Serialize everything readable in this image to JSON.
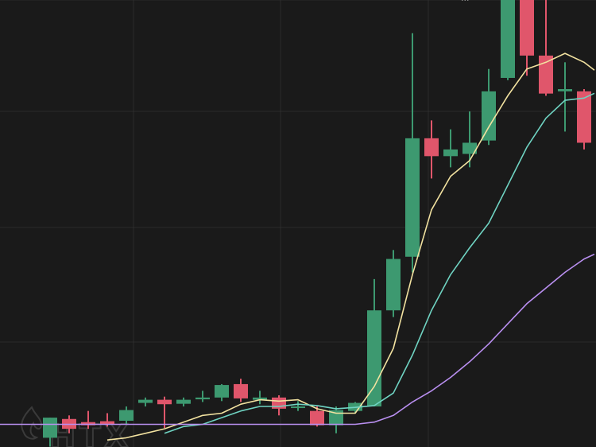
{
  "chart_data": {
    "type": "candlestick",
    "grid": true,
    "background": "#1a1a1a",
    "gridColor": "#2b2b2b",
    "upColor": "#3d9970",
    "downColor": "#e0566b",
    "ylim": [
      0,
      100
    ],
    "candles": [
      {
        "o": 1.0,
        "h": 5.5,
        "l": -1.0,
        "c": 5.5
      },
      {
        "o": 5.2,
        "h": 6.0,
        "l": 2.0,
        "c": 3.0
      },
      {
        "o": 4.5,
        "h": 7.0,
        "l": 3.0,
        "c": 3.8
      },
      {
        "o": 4.7,
        "h": 6.5,
        "l": 3.5,
        "c": 4.0
      },
      {
        "o": 4.8,
        "h": 8.0,
        "l": 4.0,
        "c": 7.2
      },
      {
        "o": 8.8,
        "h": 10.0,
        "l": 8.0,
        "c": 9.5
      },
      {
        "o": 9.5,
        "h": 10.2,
        "l": 3.2,
        "c": 8.5
      },
      {
        "o": 8.6,
        "h": 10.0,
        "l": 8.0,
        "c": 9.5
      },
      {
        "o": 9.6,
        "h": 11.5,
        "l": 9.0,
        "c": 10.0
      },
      {
        "o": 10.0,
        "h": 13.0,
        "l": 9.2,
        "c": 12.8
      },
      {
        "o": 13.0,
        "h": 14.2,
        "l": 9.0,
        "c": 9.8
      },
      {
        "o": 9.5,
        "h": 11.5,
        "l": 8.5,
        "c": 10.0
      },
      {
        "o": 10.0,
        "h": 10.5,
        "l": 6.0,
        "c": 7.5
      },
      {
        "o": 7.8,
        "h": 9.2,
        "l": 7.0,
        "c": 8.0
      },
      {
        "o": 7.0,
        "h": 8.0,
        "l": 3.5,
        "c": 3.8
      },
      {
        "o": 3.8,
        "h": 8.0,
        "l": 2.0,
        "c": 7.2
      },
      {
        "o": 7.0,
        "h": 9.0,
        "l": 6.5,
        "c": 8.8
      },
      {
        "o": 8.0,
        "h": 36.5,
        "l": 8.0,
        "c": 29.5
      },
      {
        "o": 29.5,
        "h": 43.0,
        "l": 28.0,
        "c": 41.0
      },
      {
        "o": 41.5,
        "h": 91.5,
        "l": 38.0,
        "c": 68.0
      },
      {
        "o": 68.0,
        "h": 72.0,
        "l": 59.0,
        "c": 64.0
      },
      {
        "o": 64.0,
        "h": 70.0,
        "l": 61.5,
        "c": 65.5
      },
      {
        "o": 64.5,
        "h": 74.0,
        "l": 61.5,
        "c": 67.0
      },
      {
        "o": 67.5,
        "h": 83.5,
        "l": 66.5,
        "c": 78.5
      },
      {
        "o": 81.5,
        "h": 101.5,
        "l": 81.0,
        "c": 100.0
      },
      {
        "o": 100.0,
        "h": 101.5,
        "l": 82.0,
        "c": 86.5
      },
      {
        "o": 86.5,
        "h": 100.0,
        "l": 77.5,
        "c": 78.0
      },
      {
        "o": 78.5,
        "h": 85.0,
        "l": 69.5,
        "c": 79.0
      },
      {
        "o": 78.5,
        "h": 79.0,
        "l": 65.5,
        "c": 67.0
      }
    ],
    "series": [
      {
        "color": "#f2e2a0",
        "values": [
          null,
          null,
          null,
          0.5,
          1.0,
          2.0,
          3.0,
          4.5,
          6.0,
          6.5,
          8.5,
          9.5,
          9.2,
          9.5,
          7.5,
          6.5,
          6.5,
          12.5,
          21.0,
          37.5,
          52.0,
          59.5,
          63.0,
          70.5,
          77.5,
          83.5,
          85.0,
          87.0,
          85.0
        ]
      },
      {
        "color": "#6fd3c2",
        "values": [
          null,
          null,
          null,
          null,
          null,
          null,
          2.0,
          3.5,
          4.0,
          5.5,
          7.0,
          8.0,
          8.0,
          8.5,
          8.2,
          7.5,
          7.8,
          8.2,
          11.0,
          19.5,
          29.5,
          37.5,
          43.5,
          49.0,
          57.5,
          66.0,
          72.5,
          76.5,
          77.0
        ]
      },
      {
        "color": "#b98ff0",
        "values": [
          4.0,
          4.0,
          4.0,
          4.0,
          4.0,
          4.0,
          4.0,
          4.0,
          4.0,
          4.0,
          4.0,
          4.0,
          4.0,
          4.0,
          4.0,
          4.0,
          4.0,
          4.5,
          6.0,
          9.0,
          11.5,
          14.5,
          18.0,
          22.0,
          26.5,
          31.0,
          34.5,
          38.0,
          41.0
        ]
      }
    ],
    "peak_label": "··· ",
    "watermark": "HTX"
  }
}
